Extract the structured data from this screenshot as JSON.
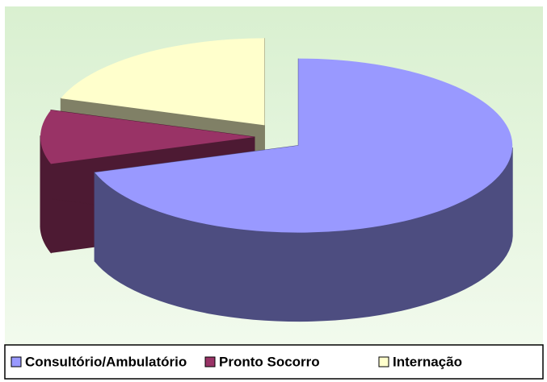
{
  "chart_data": {
    "type": "pie",
    "categories": [
      "Consultório/Ambulatório",
      "Pronto Socorro",
      "Internação"
    ],
    "values": [
      70,
      10,
      20
    ],
    "colors": [
      "#9999ff",
      "#993366",
      "#ffffcc"
    ],
    "side_colors": [
      "#4d4d80",
      "#4d1a33",
      "#808066"
    ],
    "legend": "bottom"
  }
}
